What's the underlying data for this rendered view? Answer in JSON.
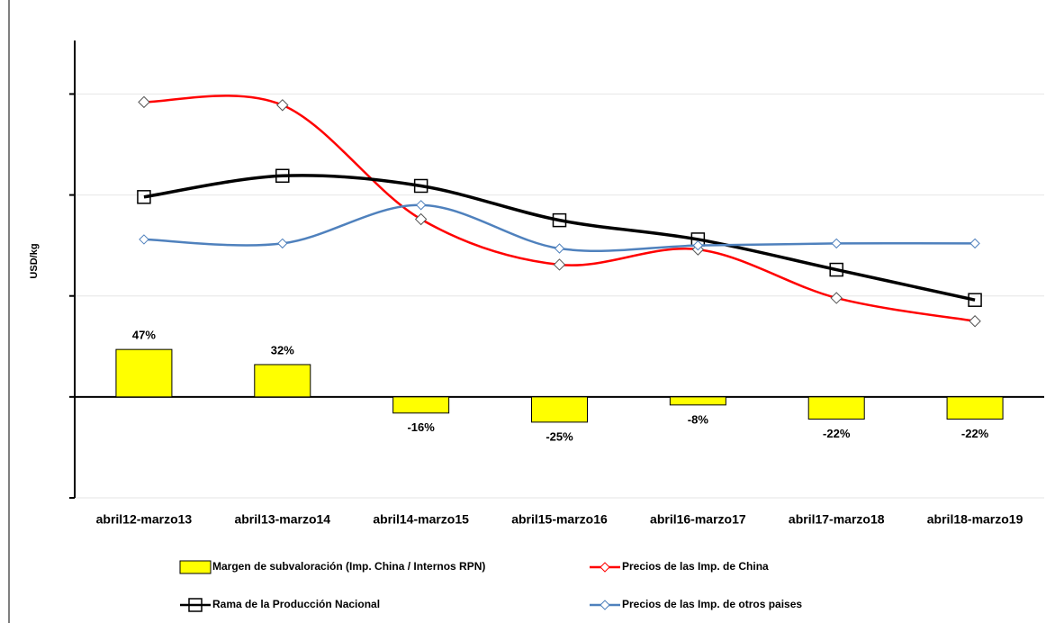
{
  "chart_data": {
    "type": "combo",
    "y_label": "USD/kg",
    "categories": [
      "abril12-marzo13",
      "abril13-marzo14",
      "abril14-marzo15",
      "abril15-marzo16",
      "abril16-marzo17",
      "abril17-marzo18",
      "abril18-marzo19"
    ],
    "ylim": [
      -100,
      353
    ],
    "yticks": [
      -100,
      0,
      100,
      200,
      300
    ],
    "grid": true,
    "series": [
      {
        "name": "Margen de subvaloración (Imp. China / Internos RPN)",
        "type": "bar",
        "color": "#ffff00",
        "values": [
          47,
          32,
          -16,
          -25,
          -8,
          -22,
          -22
        ],
        "value_labels": [
          "47%",
          "32%",
          "-16%",
          "-25%",
          "-8%",
          "-22%",
          "-22%"
        ]
      },
      {
        "name": "Precios de las Imp. de China",
        "type": "line",
        "color": "#ff0000",
        "marker": "diamond",
        "values": [
          292,
          289,
          176,
          131,
          146,
          98,
          75
        ]
      },
      {
        "name": "Rama de la Producción Nacional",
        "type": "line",
        "color": "#000000",
        "marker": "square",
        "values": [
          198,
          219,
          209,
          175,
          156,
          126,
          96
        ]
      },
      {
        "name": "Precios de las Imp. de otros paises",
        "type": "line",
        "color": "#4f81bd",
        "marker": "diamond-small",
        "values": [
          156,
          152,
          190,
          147,
          150,
          152,
          152
        ]
      }
    ]
  }
}
